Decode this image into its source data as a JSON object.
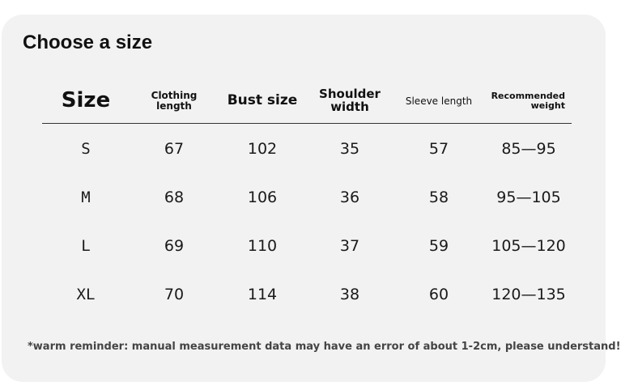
{
  "title": "Choose a size",
  "table": {
    "headers": [
      "Size",
      "Clothing length",
      "Bust size",
      "Shoulder width",
      "Sleeve length",
      "Recommended weight"
    ],
    "header_lines": {
      "clothing": [
        "Clothing",
        "length"
      ],
      "shoulder": [
        "Shoulder",
        "width"
      ],
      "recommended": [
        "Recommended",
        "weight"
      ]
    },
    "rows": [
      {
        "size": "S",
        "clothing_length": "67",
        "bust_size": "102",
        "shoulder_width": "35",
        "sleeve_length": "57",
        "weight": "85—95"
      },
      {
        "size": "M",
        "clothing_length": "68",
        "bust_size": "106",
        "shoulder_width": "36",
        "sleeve_length": "58",
        "weight": "95—105"
      },
      {
        "size": "L",
        "clothing_length": "69",
        "bust_size": "110",
        "shoulder_width": "37",
        "sleeve_length": "59",
        "weight": "105—120"
      },
      {
        "size": "XL",
        "clothing_length": "70",
        "bust_size": "114",
        "shoulder_width": "38",
        "sleeve_length": "60",
        "weight": "120—135"
      }
    ]
  },
  "note": "*warm reminder: manual measurement data may have an error of about 1-2cm, please understand!",
  "colors": {
    "card_background": "#f2f2f2",
    "text": "#111111",
    "note_text": "#444444"
  }
}
